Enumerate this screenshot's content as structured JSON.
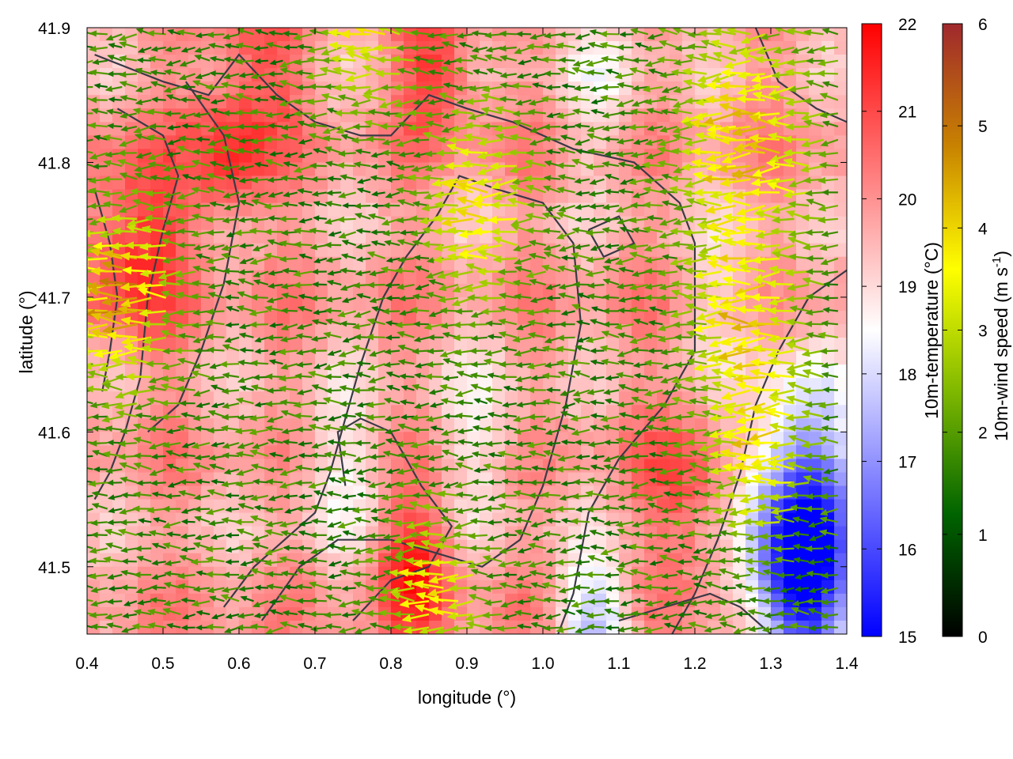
{
  "chart_data": {
    "type": "heatmap",
    "subtype": "temperature field with wind vector arrows and coastline contours",
    "xlabel": "longitude (°)",
    "ylabel": "latitude (°)",
    "xlim": [
      0.4,
      1.4
    ],
    "ylim": [
      41.45,
      41.9
    ],
    "xticks": [
      "0.4",
      "0.5",
      "0.6",
      "0.7",
      "0.8",
      "0.9",
      "1.0",
      "1.1",
      "1.2",
      "1.3",
      "1.4"
    ],
    "yticks": [
      "41.5",
      "41.6",
      "41.7",
      "41.8",
      "41.9"
    ],
    "temperature_colorbar": {
      "label": "10m-temperature (°C)",
      "range": [
        15,
        22
      ],
      "ticks": [
        "15",
        "16",
        "17",
        "18",
        "19",
        "20",
        "21",
        "22"
      ],
      "colors": [
        "#0000ff",
        "#ffffff",
        "#ff0000"
      ]
    },
    "wind_colorbar": {
      "label_main": "10m-wind speed (m s",
      "label_sup": "-1",
      "label_end": ")",
      "range": [
        0,
        6
      ],
      "ticks": [
        "0",
        "1",
        "2",
        "3",
        "4",
        "5",
        "6"
      ],
      "colors": [
        "#000000",
        "#006400",
        "#7fb800",
        "#ffff00",
        "#c88200",
        "#a0282d"
      ]
    },
    "temperature_field": {
      "base": 19.8,
      "warm_spots": [
        {
          "lon": 0.46,
          "lat": 41.74,
          "temp": 21.5,
          "r": 0.07
        },
        {
          "lon": 0.59,
          "lat": 41.8,
          "temp": 21.2,
          "r": 0.05
        },
        {
          "lon": 0.83,
          "lat": 41.5,
          "temp": 21.6,
          "r": 0.05
        },
        {
          "lon": 0.86,
          "lat": 41.87,
          "temp": 21.3,
          "r": 0.05
        },
        {
          "lon": 0.62,
          "lat": 41.88,
          "temp": 21.0,
          "r": 0.06
        },
        {
          "lon": 1.2,
          "lat": 41.55,
          "temp": 21.0,
          "r": 0.07
        }
      ],
      "cool_spots": [
        {
          "lon": 1.34,
          "lat": 41.55,
          "temp": 16.2,
          "r": 0.08
        },
        {
          "lon": 1.34,
          "lat": 41.48,
          "temp": 16.0,
          "r": 0.06
        },
        {
          "lon": 1.07,
          "lat": 41.46,
          "temp": 17.8,
          "r": 0.05
        },
        {
          "lon": 0.73,
          "lat": 41.57,
          "temp": 18.8,
          "r": 0.06
        },
        {
          "lon": 0.92,
          "lat": 41.6,
          "temp": 18.9,
          "r": 0.06
        },
        {
          "lon": 1.08,
          "lat": 41.86,
          "temp": 19.0,
          "r": 0.06
        },
        {
          "lon": 1.25,
          "lat": 41.7,
          "temp": 19.2,
          "r": 0.06
        }
      ]
    },
    "wind_field": {
      "direction_deg_from_east": 180,
      "base_speed": 1.7,
      "fast_spots": [
        {
          "lon": 0.46,
          "lat": 41.7,
          "speed": 4.6,
          "r": 0.06
        },
        {
          "lon": 0.93,
          "lat": 41.77,
          "speed": 4.0,
          "r": 0.06
        },
        {
          "lon": 1.28,
          "lat": 41.82,
          "speed": 4.2,
          "r": 0.08
        },
        {
          "lon": 1.28,
          "lat": 41.68,
          "speed": 3.8,
          "r": 0.07
        },
        {
          "lon": 1.3,
          "lat": 41.58,
          "speed": 3.5,
          "r": 0.06
        },
        {
          "lon": 0.87,
          "lat": 41.48,
          "speed": 3.9,
          "r": 0.05
        },
        {
          "lon": 0.78,
          "lat": 41.89,
          "speed": 3.6,
          "r": 0.05
        }
      ]
    },
    "contours": [
      [
        [
          0.41,
          41.88
        ],
        [
          0.5,
          41.86
        ],
        [
          0.56,
          41.85
        ],
        [
          0.6,
          41.88
        ],
        [
          0.65,
          41.85
        ],
        [
          0.7,
          41.83
        ],
        [
          0.76,
          41.82
        ],
        [
          0.8,
          41.82
        ],
        [
          0.85,
          41.85
        ],
        [
          0.9,
          41.84
        ],
        [
          0.96,
          41.83
        ],
        [
          1.04,
          41.81
        ],
        [
          1.12,
          41.8
        ],
        [
          1.18,
          41.77
        ],
        [
          1.2,
          41.74
        ],
        [
          1.2,
          41.66
        ],
        [
          1.16,
          41.62
        ],
        [
          1.1,
          41.58
        ],
        [
          1.06,
          41.54
        ],
        [
          1.04,
          41.48
        ],
        [
          1.02,
          41.45
        ]
      ],
      [
        [
          0.53,
          41.86
        ],
        [
          0.58,
          41.82
        ],
        [
          0.6,
          41.77
        ],
        [
          0.58,
          41.71
        ],
        [
          0.55,
          41.66
        ],
        [
          0.52,
          41.62
        ],
        [
          0.48,
          41.6
        ]
      ],
      [
        [
          0.44,
          41.84
        ],
        [
          0.5,
          41.82
        ],
        [
          0.52,
          41.79
        ],
        [
          0.5,
          41.75
        ],
        [
          0.48,
          41.7
        ],
        [
          0.47,
          41.64
        ],
        [
          0.45,
          41.6
        ],
        [
          0.43,
          41.57
        ],
        [
          0.41,
          41.55
        ]
      ],
      [
        [
          0.63,
          41.46
        ],
        [
          0.68,
          41.5
        ],
        [
          0.73,
          41.52
        ],
        [
          0.8,
          41.52
        ],
        [
          0.86,
          41.51
        ],
        [
          0.92,
          41.5
        ],
        [
          0.97,
          41.52
        ],
        [
          1.0,
          41.56
        ],
        [
          1.03,
          41.62
        ],
        [
          1.05,
          41.68
        ],
        [
          1.04,
          41.74
        ],
        [
          1.0,
          41.77
        ],
        [
          0.94,
          41.78
        ],
        [
          0.89,
          41.79
        ],
        [
          0.86,
          41.76
        ],
        [
          0.82,
          41.73
        ],
        [
          0.79,
          41.7
        ],
        [
          0.76,
          41.65
        ],
        [
          0.74,
          41.61
        ],
        [
          0.72,
          41.57
        ],
        [
          0.7,
          41.54
        ],
        [
          0.66,
          41.52
        ],
        [
          0.62,
          41.5
        ],
        [
          0.58,
          41.47
        ]
      ],
      [
        [
          0.41,
          41.78
        ],
        [
          0.43,
          41.74
        ],
        [
          0.44,
          41.7
        ],
        [
          0.43,
          41.66
        ],
        [
          0.42,
          41.63
        ]
      ],
      [
        [
          1.28,
          41.9
        ],
        [
          1.31,
          41.86
        ],
        [
          1.36,
          41.84
        ],
        [
          1.4,
          41.83
        ]
      ],
      [
        [
          1.4,
          41.72
        ],
        [
          1.35,
          41.7
        ],
        [
          1.31,
          41.66
        ],
        [
          1.28,
          41.62
        ],
        [
          1.26,
          41.57
        ],
        [
          1.23,
          41.52
        ],
        [
          1.2,
          41.48
        ],
        [
          1.17,
          41.45
        ]
      ],
      [
        [
          0.75,
          41.46
        ],
        [
          0.8,
          41.49
        ],
        [
          0.85,
          41.5
        ],
        [
          0.88,
          41.53
        ],
        [
          0.84,
          41.56
        ],
        [
          0.8,
          41.6
        ],
        [
          0.76,
          41.61
        ],
        [
          0.73,
          41.6
        ],
        [
          0.74,
          41.56
        ]
      ],
      [
        [
          1.1,
          41.46
        ],
        [
          1.16,
          41.47
        ],
        [
          1.22,
          41.48
        ],
        [
          1.26,
          41.47
        ],
        [
          1.3,
          41.45
        ]
      ],
      [
        [
          1.06,
          41.75
        ],
        [
          1.1,
          41.76
        ],
        [
          1.12,
          41.74
        ],
        [
          1.08,
          41.73
        ],
        [
          1.06,
          41.75
        ]
      ]
    ]
  }
}
